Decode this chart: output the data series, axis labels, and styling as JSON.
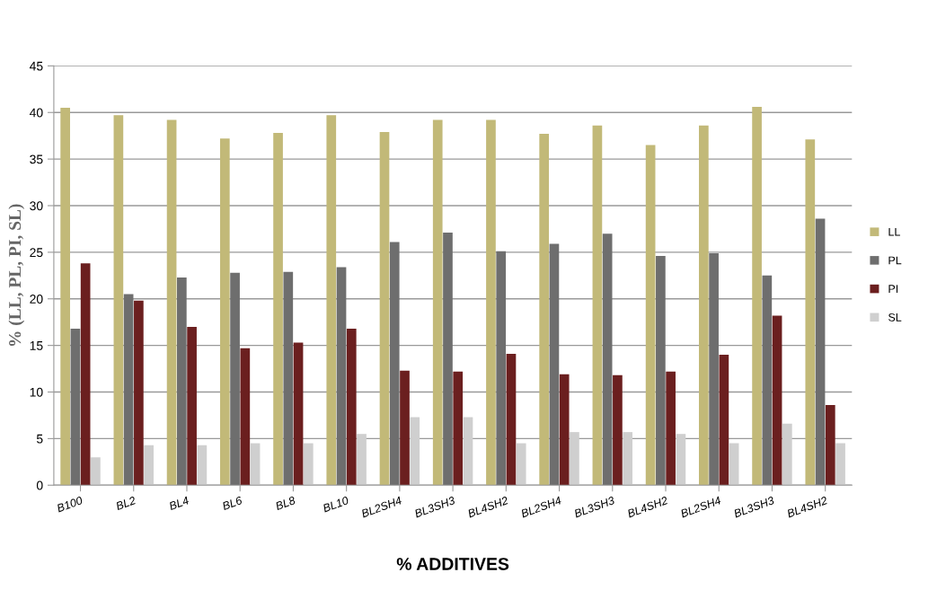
{
  "chart_data": {
    "type": "bar",
    "xlabel": "% ADDITIVES",
    "ylabel": "% (LL, PL, PI, SL)",
    "categories": [
      "B100",
      "BL2",
      "BL4",
      "BL6",
      "BL8",
      "BL10",
      "BL2SH4",
      "BL3SH3",
      "BL4SH2",
      "BL2SH4",
      "BL3SH3",
      "BL4SH2",
      "BL2SH4",
      "BL3SH3",
      "BL4SH2"
    ],
    "series": [
      {
        "name": "LL",
        "color": "#c2b978",
        "values": [
          40.5,
          39.7,
          39.2,
          37.2,
          37.8,
          39.7,
          37.9,
          39.2,
          39.2,
          37.7,
          38.6,
          36.5,
          38.6,
          40.6,
          37.1
        ]
      },
      {
        "name": "PL",
        "color": "#6e6e6e",
        "values": [
          16.8,
          20.5,
          22.3,
          22.8,
          22.9,
          23.4,
          26.1,
          27.1,
          25.1,
          25.9,
          27.0,
          24.6,
          24.9,
          22.5,
          28.6
        ]
      },
      {
        "name": "PI",
        "color": "#6b1f1f",
        "values": [
          23.8,
          19.8,
          17.0,
          14.7,
          15.3,
          16.8,
          12.3,
          12.2,
          14.1,
          11.9,
          11.8,
          12.2,
          14.0,
          18.2,
          8.6
        ]
      },
      {
        "name": "SL",
        "color": "#cfcfcf",
        "values": [
          3.0,
          4.3,
          4.3,
          4.5,
          4.5,
          5.5,
          7.3,
          7.3,
          4.5,
          5.7,
          5.7,
          5.5,
          4.5,
          6.6,
          4.5
        ]
      }
    ],
    "ylim": [
      0,
      45
    ],
    "yticks": [
      0,
      5,
      10,
      15,
      20,
      25,
      30,
      35,
      40,
      45
    ],
    "grid": "y",
    "legend": "right"
  }
}
